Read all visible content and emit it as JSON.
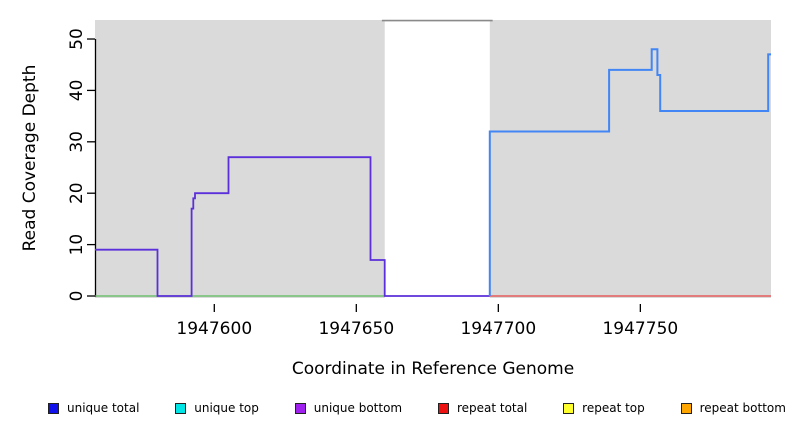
{
  "chart_data": {
    "type": "line",
    "subtype": "step-coverage",
    "title": "",
    "xlabel": "Coordinate in Reference Genome",
    "ylabel": "Read Coverage Depth",
    "xlim": [
      1947558,
      1947796
    ],
    "ylim": [
      0,
      53.7
    ],
    "x_ticks": [
      1947600,
      1947650,
      1947700,
      1947750
    ],
    "y_ticks": [
      0,
      10,
      20,
      30,
      40,
      50
    ],
    "grid": false,
    "plot_bg_color": "#ffffff",
    "region_color": "#DADADA",
    "background_regions": [
      {
        "name": "covered-region-left",
        "x0": 1947558,
        "x1": 1947660
      },
      {
        "name": "covered-region-right",
        "x0": 1947697,
        "x1": 1947796
      }
    ],
    "gap_marker": {
      "x0": 1947659,
      "x1": 1947698,
      "y": 53.6,
      "color": "#8A8A8A"
    },
    "series": [
      {
        "name": "green zero line",
        "color": "#5BBB5B",
        "width": 1.2,
        "step_points": [
          [
            1947558,
            0
          ],
          [
            1947660,
            0
          ]
        ]
      },
      {
        "name": "repeat total zero line",
        "color": "#E64545",
        "width": 1.2,
        "step_points": [
          [
            1947697,
            0
          ],
          [
            1947796,
            0
          ]
        ]
      },
      {
        "name": "unique bottom",
        "color": "#5B2FD9",
        "width": 1.8,
        "step_points": [
          [
            1947558,
            9
          ],
          [
            1947580,
            0
          ],
          [
            1947592,
            17
          ],
          [
            1947592.6,
            19
          ],
          [
            1947593.2,
            20
          ],
          [
            1947605,
            27
          ],
          [
            1947655,
            7
          ],
          [
            1947660,
            0
          ],
          [
            1947697,
            0
          ]
        ]
      },
      {
        "name": "unique total",
        "color": "#4285F4",
        "width": 2,
        "step_points": [
          [
            1947697,
            0
          ],
          [
            1947697,
            32
          ],
          [
            1947739,
            44
          ],
          [
            1947754,
            48
          ],
          [
            1947756,
            43
          ],
          [
            1947757,
            36
          ],
          [
            1947795,
            47
          ],
          [
            1947796,
            47
          ]
        ]
      }
    ]
  },
  "legend": {
    "items": [
      {
        "label": "unique total",
        "color": "#1111EE"
      },
      {
        "label": "unique top",
        "color": "#00E6E6"
      },
      {
        "label": "unique bottom",
        "color": "#A020F0"
      },
      {
        "label": "repeat total",
        "color": "#EE1111"
      },
      {
        "label": "repeat top",
        "color": "#FFFF2E"
      },
      {
        "label": "repeat bottom",
        "color": "#FFA500"
      }
    ]
  }
}
